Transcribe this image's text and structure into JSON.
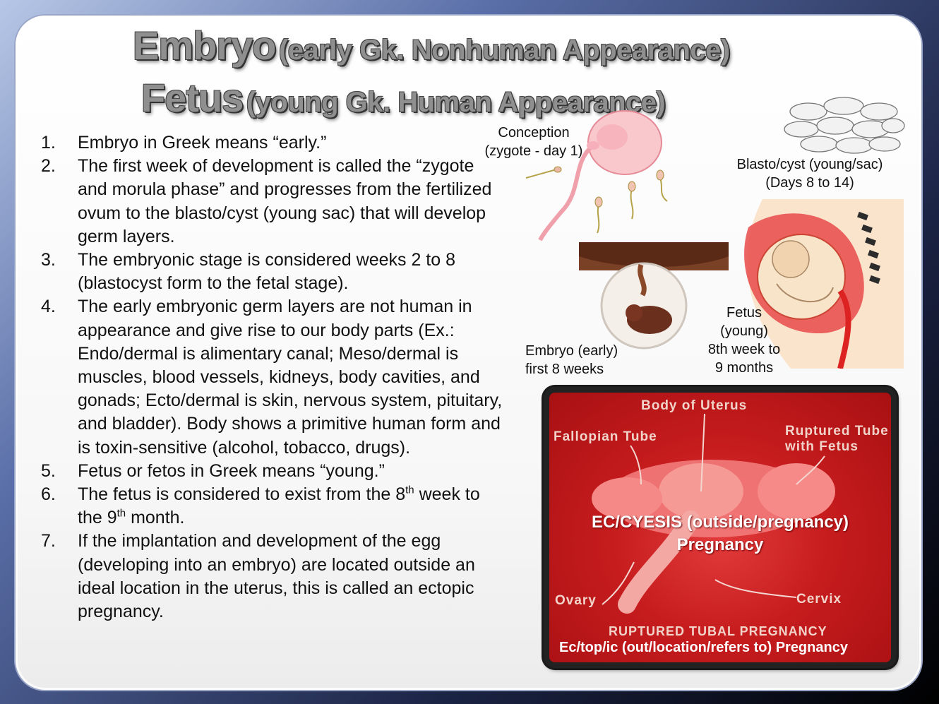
{
  "title": {
    "line1_main": "Embryo",
    "line1_sub": "(early Gk. Nonhuman Appearance)",
    "line2_main": "Fetus",
    "line2_sub": "(young Gk. Human Appearance)"
  },
  "list": [
    {
      "num": "1.",
      "text": "Embryo in Greek means “early.”"
    },
    {
      "num": "2.",
      "text": "The first week of development is called the “zygote and morula phase” and progresses from the fertilized ovum to the blasto/cyst (young sac) that will develop germ layers."
    },
    {
      "num": "3.",
      "text": "The embryonic stage is considered weeks 2 to 8 (blastocyst form to the fetal stage)."
    },
    {
      "num": "4.",
      "text": "The early embryonic germ layers are not human in appearance and give rise to our body parts (Ex.: Endo/dermal is alimentary canal; Meso/dermal is muscles, blood vessels, kidneys, body cavities, and gonads; Ecto/dermal is skin, nervous system, pituitary, and bladder). Body shows a primitive human form and is toxin-sensitive (alcohol, tobacco, drugs)."
    },
    {
      "num": "5.",
      "text": "Fetus or fetos in Greek means “young.”"
    },
    {
      "num": "6.",
      "text_a": "The fetus is considered to exist from the 8",
      "sup_a": "th",
      "text_b": " week to the 9",
      "sup_b": "th",
      "text_c": " month."
    },
    {
      "num": "7.",
      "text": " If the implantation and development of the egg (developing into an embryo) are located outside an ideal location in the uterus, this is called an ectopic pregnancy."
    }
  ],
  "labels": {
    "conception_1": "Conception",
    "conception_2": "(zygote - day 1)",
    "blasto_1": "Blasto/cyst (young/sac)",
    "blasto_2": "(Days 8 to 14)",
    "embryo_1": "Embryo (early)",
    "embryo_2": "first 8 weeks",
    "fetus_1": "Fetus",
    "fetus_2": "(young)",
    "fetus_3": "8th week to",
    "fetus_4": "9 months"
  },
  "photo": {
    "body_of_uterus": "Body  of  Uterus",
    "fallopian_tube": "Fallopian  Tube",
    "ruptured_tube_1": "Ruptured  Tube",
    "ruptured_tube_2": "with  Fetus",
    "center_1": "EC/CYESIS (outside/pregnancy)",
    "center_2": "Pregnancy",
    "ovary": "Ovary",
    "cervix": "Cervix",
    "bottom_1": "RUPTURED  TUBAL  PREGNANCY",
    "bottom_2": "Ec/top/ic (out/location/refers to) Pregnancy"
  }
}
